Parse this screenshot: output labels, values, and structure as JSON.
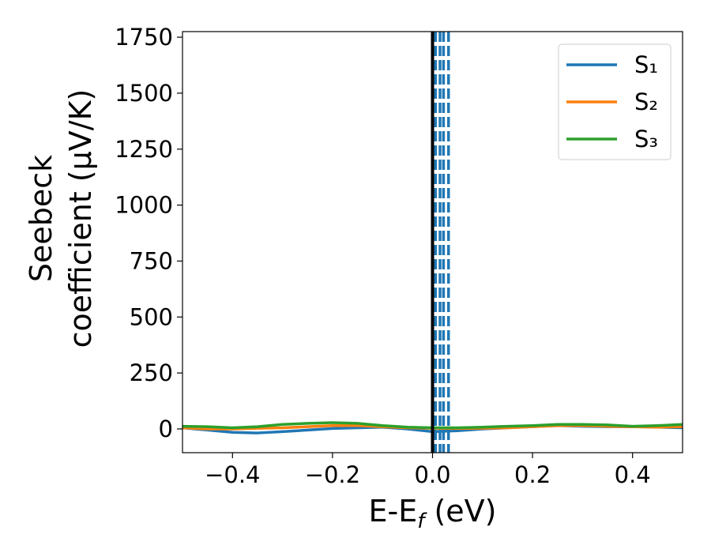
{
  "chart_data": {
    "type": "line",
    "xlabel": {
      "text": "E-E",
      "subscript": "f",
      "suffix": " (eV)"
    },
    "ylabel": [
      "Seebeck",
      "coefficient  (μV/K)"
    ],
    "x": [
      -0.5,
      -0.45,
      -0.4,
      -0.35,
      -0.3,
      -0.25,
      -0.2,
      -0.15,
      -0.1,
      -0.05,
      0.0,
      0.05,
      0.1,
      0.15,
      0.2,
      0.25,
      0.3,
      0.35,
      0.4,
      0.45,
      0.5
    ],
    "series": [
      {
        "name": "S₁",
        "color": "#1f77b4",
        "values": [
          5,
          -5,
          -15,
          -18,
          -12,
          -5,
          2,
          5,
          8,
          0,
          -12,
          -8,
          0,
          5,
          10,
          15,
          12,
          10,
          10,
          8,
          5
        ]
      },
      {
        "name": "S₂",
        "color": "#ff7f0e",
        "values": [
          5,
          0,
          0,
          3,
          5,
          10,
          15,
          15,
          10,
          5,
          3,
          2,
          3,
          5,
          10,
          15,
          15,
          12,
          10,
          8,
          10
        ]
      },
      {
        "name": "S₃",
        "color": "#2ca02c",
        "values": [
          12,
          10,
          5,
          10,
          20,
          25,
          28,
          25,
          15,
          8,
          5,
          5,
          8,
          12,
          15,
          20,
          20,
          18,
          12,
          15,
          20
        ]
      }
    ],
    "vlines": [
      {
        "x": 0.0,
        "color": "#000000",
        "dashed": false
      },
      {
        "x": 0.006,
        "color": "#1f77b4",
        "dashed": true
      },
      {
        "x": 0.015,
        "color": "#1f77b4",
        "dashed": true
      },
      {
        "x": 0.022,
        "color": "#1f77b4",
        "dashed": true
      },
      {
        "x": 0.032,
        "color": "#1f77b4",
        "dashed": true
      }
    ],
    "xlim": [
      -0.5,
      0.5
    ],
    "ylim": [
      -106,
      1775
    ],
    "xticks": [
      {
        "value": -0.4,
        "label": "−0.4"
      },
      {
        "value": -0.2,
        "label": "−0.2"
      },
      {
        "value": 0,
        "label": "0.0"
      },
      {
        "value": 0.2,
        "label": "0.2"
      },
      {
        "value": 0.4,
        "label": "0.4"
      }
    ],
    "yticks": [
      0,
      250,
      500,
      750,
      1000,
      1250,
      1500,
      1750
    ],
    "legend": "upper right"
  }
}
